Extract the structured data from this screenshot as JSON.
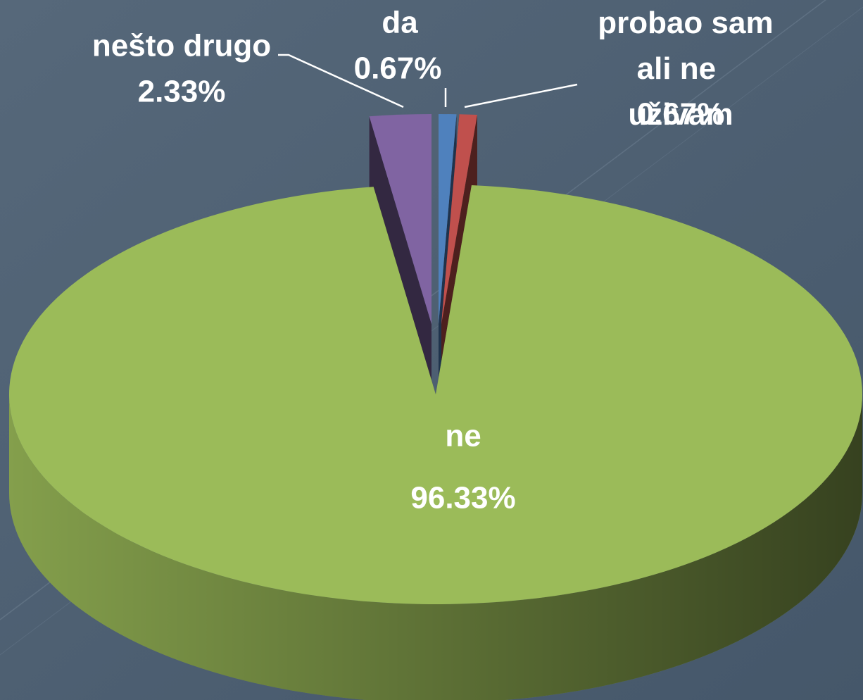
{
  "chart_data": {
    "type": "pie",
    "categories": [
      "da",
      "probao sam ali ne uživam",
      "ne",
      "nešto drugo"
    ],
    "values": [
      0.67,
      0.67,
      96.33,
      2.33
    ],
    "value_labels": [
      "0.67%",
      "0.67%",
      "96.33%",
      "2.33%"
    ],
    "colors": [
      "#4f81bd",
      "#c0504d",
      "#9bbb59",
      "#8064a2"
    ]
  }
}
